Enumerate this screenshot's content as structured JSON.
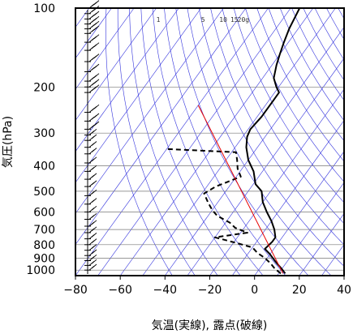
{
  "chart_data": {
    "type": "line",
    "xlabel": "気温(実線), 露点(破線)",
    "ylabel": "気圧(hPa)",
    "x_ticks": [
      -80,
      -60,
      -40,
      -20,
      0,
      20,
      40
    ],
    "y_ticks": [
      100,
      200,
      300,
      400,
      500,
      600,
      700,
      800,
      900,
      1000
    ],
    "xlim": [
      -80,
      40
    ],
    "ylim_hpa": [
      1050,
      100
    ],
    "y_scale": "log",
    "grid": true,
    "mixing_ratio_labels": [
      "1",
      "5",
      "10",
      "15",
      "20g"
    ],
    "series": [
      {
        "role": "temperature",
        "style": "solid",
        "points": [
          {
            "t": 13,
            "p": 1030
          },
          {
            "t": 10,
            "p": 990
          },
          {
            "t": 5,
            "p": 930
          },
          {
            "t": 0,
            "p": 870
          },
          {
            "t": -4,
            "p": 830
          },
          {
            "t": -3,
            "p": 780
          },
          {
            "t": -3,
            "p": 750
          },
          {
            "t": -6,
            "p": 700
          },
          {
            "t": -10,
            "p": 650
          },
          {
            "t": -15,
            "p": 600
          },
          {
            "t": -20,
            "p": 550
          },
          {
            "t": -24,
            "p": 500
          },
          {
            "t": -29,
            "p": 470
          },
          {
            "t": -34,
            "p": 420
          },
          {
            "t": -40,
            "p": 380
          },
          {
            "t": -45,
            "p": 340
          },
          {
            "t": -48,
            "p": 310
          },
          {
            "t": -49,
            "p": 290
          },
          {
            "t": -48,
            "p": 260
          },
          {
            "t": -48,
            "p": 230
          },
          {
            "t": -48,
            "p": 210
          },
          {
            "t": -51,
            "p": 200
          },
          {
            "t": -55,
            "p": 185
          },
          {
            "t": -58,
            "p": 165
          },
          {
            "t": -60,
            "p": 150
          },
          {
            "t": -62,
            "p": 135
          },
          {
            "t": -64,
            "p": 120
          },
          {
            "t": -66,
            "p": 100
          }
        ]
      },
      {
        "role": "dewpoint",
        "style": "dashed",
        "points": [
          {
            "t": 11,
            "p": 1030
          },
          {
            "t": 7,
            "p": 990
          },
          {
            "t": 3,
            "p": 940
          },
          {
            "t": -1,
            "p": 900
          },
          {
            "t": -6,
            "p": 860
          },
          {
            "t": -10,
            "p": 820
          },
          {
            "t": -18,
            "p": 790
          },
          {
            "t": -30,
            "p": 750
          },
          {
            "t": -17,
            "p": 720
          },
          {
            "t": -24,
            "p": 690
          },
          {
            "t": -28,
            "p": 660
          },
          {
            "t": -36,
            "p": 620
          },
          {
            "t": -40,
            "p": 590
          },
          {
            "t": -44,
            "p": 555
          },
          {
            "t": -49,
            "p": 510
          },
          {
            "t": -46,
            "p": 480
          },
          {
            "t": -38,
            "p": 440
          },
          {
            "t": -42,
            "p": 410
          },
          {
            "t": -45,
            "p": 380
          },
          {
            "t": -48,
            "p": 355
          },
          {
            "t": -80,
            "p": 345
          }
        ]
      },
      {
        "role": "reference",
        "style": "solid",
        "color": "#e60000",
        "points": [
          {
            "t": 12,
            "p": 1030
          },
          {
            "t": -80,
            "p": 235
          }
        ]
      }
    ],
    "colors": {
      "background": "#ffffff",
      "dry_adiabat": "#3333dd",
      "isotherm": "#3333dd",
      "grid": "#777777",
      "temperature": "#000000",
      "dewpoint": "#000000",
      "reference": "#e60000"
    },
    "wind_barbs": {
      "color": "#000000",
      "pressures": [
        100,
        105,
        110,
        115,
        120,
        125,
        135,
        145,
        160,
        175,
        190,
        200,
        210,
        250,
        270,
        290,
        305,
        320,
        340,
        360,
        390,
        420,
        450,
        480,
        520,
        560,
        600,
        640,
        680,
        720,
        760,
        800,
        840,
        880,
        920,
        960,
        1000
      ]
    }
  }
}
